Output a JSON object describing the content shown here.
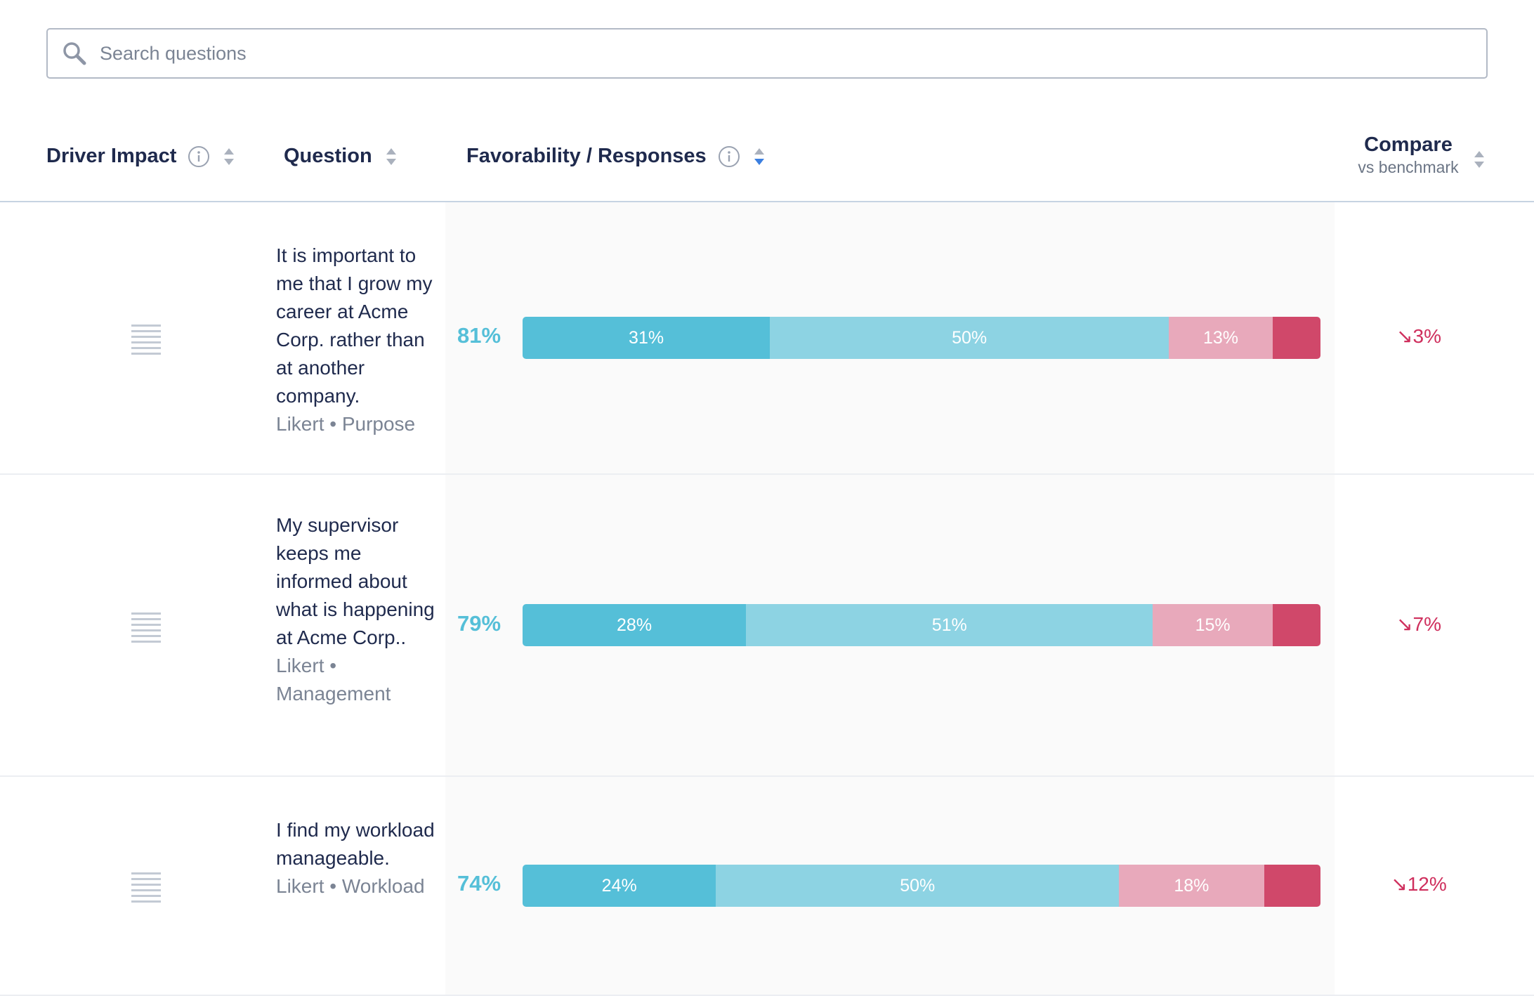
{
  "search": {
    "placeholder": "Search questions",
    "value": ""
  },
  "header": {
    "driver_impact": "Driver Impact",
    "question": "Question",
    "favorability": "Favorability / Responses",
    "compare": "Compare",
    "compare_sub": "vs benchmark"
  },
  "colors": {
    "strongly_favorable": "#55bfd8",
    "favorable": "#8dd3e3",
    "unfavorable": "#e8a9bb",
    "strongly_unfavorable": "#d0486a",
    "negative_delta": "#cf2f5d"
  },
  "rows": [
    {
      "question": "It is important to me that I grow my career at Acme Corp. rather than at another company.",
      "meta": "Likert • Purpose",
      "favorability": "81%",
      "segments": [
        {
          "value": 31,
          "label": "31%"
        },
        {
          "value": 50,
          "label": "50%"
        },
        {
          "value": 13,
          "label": "13%"
        },
        {
          "value": 6,
          "label": ""
        }
      ],
      "compare": "↘3%"
    },
    {
      "question": "My supervisor keeps me informed about what is happening at Acme Corp..",
      "meta": "Likert • Management",
      "favorability": "79%",
      "segments": [
        {
          "value": 28,
          "label": "28%"
        },
        {
          "value": 51,
          "label": "51%"
        },
        {
          "value": 15,
          "label": "15%"
        },
        {
          "value": 6,
          "label": ""
        }
      ],
      "compare": "↘7%"
    },
    {
      "question": "I find my workload manageable.",
      "meta": "Likert • Workload",
      "favorability": "74%",
      "segments": [
        {
          "value": 24,
          "label": "24%"
        },
        {
          "value": 50,
          "label": "50%"
        },
        {
          "value": 18,
          "label": "18%"
        },
        {
          "value": 7,
          "label": ""
        }
      ],
      "compare": "↘12%"
    }
  ]
}
